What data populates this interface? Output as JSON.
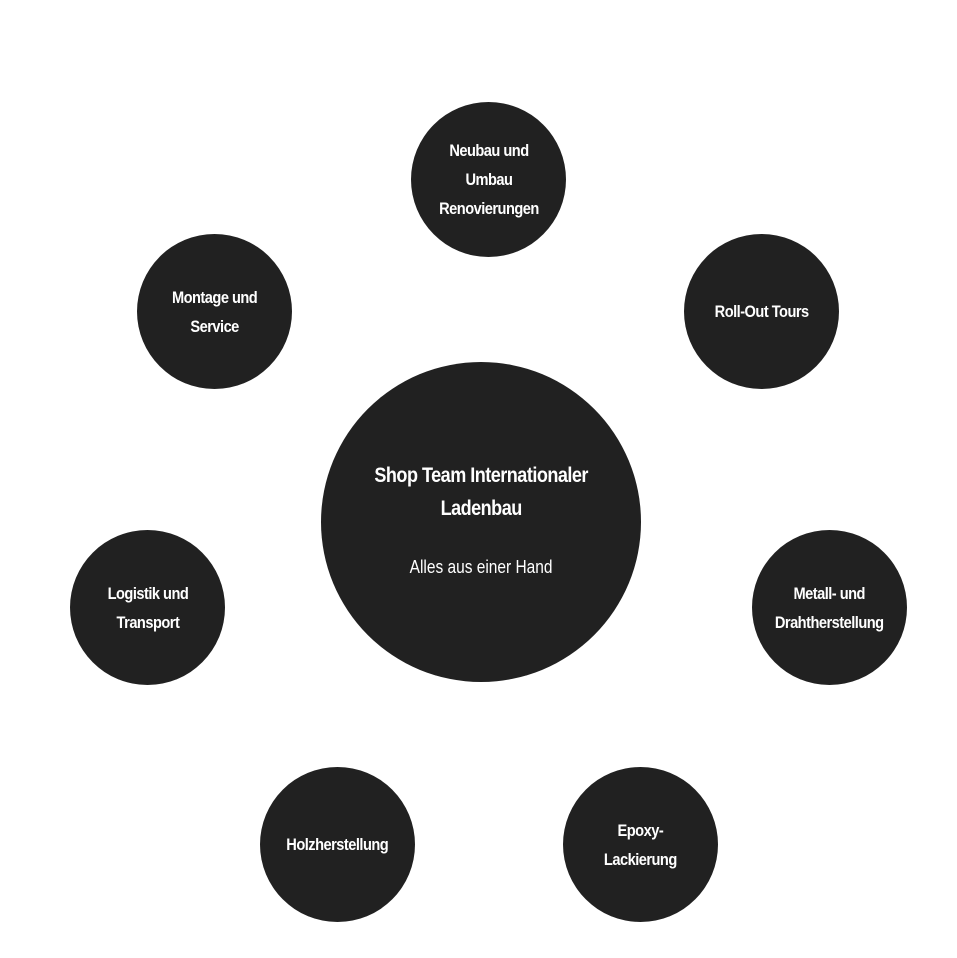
{
  "colors": {
    "node_fill": "#212121",
    "text": "#ffffff",
    "background": "#ffffff"
  },
  "center": {
    "title": "Shop Team Internationaler\nLadenbau",
    "subtitle": "Alles aus einer Hand"
  },
  "services": [
    {
      "key": "neubau",
      "label": "Neubau und\nUmbau\nRenovierungen"
    },
    {
      "key": "rollout",
      "label": "Roll-Out Tours"
    },
    {
      "key": "montage",
      "label": "Montage und\nService"
    },
    {
      "key": "logistik",
      "label": "Logistik und\nTransport"
    },
    {
      "key": "metall",
      "label": "Metall- und\nDrahtherstellung"
    },
    {
      "key": "holz",
      "label": "Holzherstellung"
    },
    {
      "key": "epoxy",
      "label": "Epoxy-\nLackierung"
    }
  ]
}
